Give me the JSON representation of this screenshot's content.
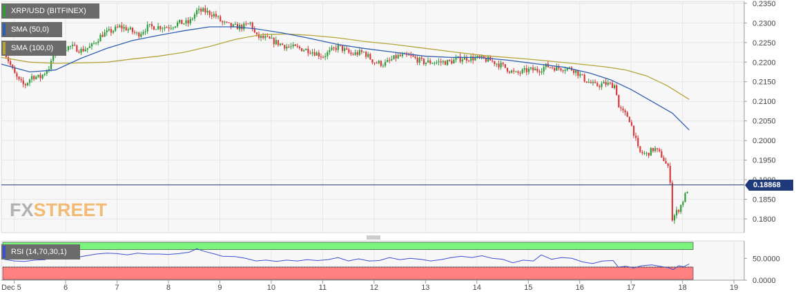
{
  "legend": {
    "title": "XRP/USD (BITFINEX)",
    "sma50": "SMA (50,0)",
    "sma100": "SMA (100,0)",
    "rsi": "RSI (14,70,30,1)"
  },
  "watermark": {
    "fx": "FX",
    "street": "STREET"
  },
  "colors": {
    "up": "#2e9a3a",
    "down": "#d9383a",
    "sma50": "#2f5fb0",
    "sma100": "#b4a43a",
    "rsi_line": "#3b4fd0",
    "overbought": "#7cf37c",
    "oversold": "#ff8080",
    "price_line": "#1f3a7a"
  },
  "chart_data": [
    {
      "type": "candlestick",
      "title": "XRP/USD (BITFINEX)",
      "ylim": [
        0.1765,
        0.2355
      ],
      "y_ticks": [
        "0.2350",
        "0.2300",
        "0.2250",
        "0.2200",
        "0.2150",
        "0.2100",
        "0.2050",
        "0.2000",
        "0.1950",
        "0.1900",
        "0.1850",
        "0.1800"
      ],
      "y_tick_values": [
        0.235,
        0.23,
        0.225,
        0.22,
        0.215,
        0.21,
        0.205,
        0.2,
        0.195,
        0.19,
        0.185,
        0.18
      ],
      "x_ticks": [
        "Dec  5",
        "6",
        "7",
        "8",
        "9",
        "10",
        "11",
        "12",
        "13",
        "14",
        "15",
        "16",
        "17",
        "18",
        "19"
      ],
      "x_tick_days": [
        5,
        6,
        7,
        8,
        9,
        10,
        11,
        12,
        13,
        14,
        15,
        16,
        17,
        18,
        19
      ],
      "x_range": [
        4.75,
        19.2
      ],
      "current_price": 0.18868,
      "current_price_label": "0.18868",
      "close_path": [
        [
          4.8,
          0.223
        ],
        [
          5.0,
          0.217
        ],
        [
          5.1,
          0.215
        ],
        [
          5.2,
          0.214
        ],
        [
          5.35,
          0.2165
        ],
        [
          5.5,
          0.216
        ],
        [
          5.7,
          0.219
        ],
        [
          5.82,
          0.2245
        ],
        [
          5.95,
          0.2235
        ],
        [
          6.1,
          0.224
        ],
        [
          6.3,
          0.223
        ],
        [
          6.5,
          0.224
        ],
        [
          6.7,
          0.227
        ],
        [
          6.9,
          0.228
        ],
        [
          7.05,
          0.229
        ],
        [
          7.2,
          0.2285
        ],
        [
          7.4,
          0.227
        ],
        [
          7.6,
          0.229
        ],
        [
          7.8,
          0.229
        ],
        [
          8.0,
          0.229
        ],
        [
          8.2,
          0.23
        ],
        [
          8.4,
          0.23
        ],
        [
          8.55,
          0.233
        ],
        [
          8.7,
          0.233
        ],
        [
          8.9,
          0.232
        ],
        [
          9.05,
          0.23
        ],
        [
          9.25,
          0.229
        ],
        [
          9.45,
          0.229
        ],
        [
          9.6,
          0.23
        ],
        [
          9.7,
          0.2265
        ],
        [
          9.9,
          0.226
        ],
        [
          10.1,
          0.225
        ],
        [
          10.3,
          0.224
        ],
        [
          10.55,
          0.2235
        ],
        [
          10.75,
          0.223
        ],
        [
          11.0,
          0.2215
        ],
        [
          11.3,
          0.224
        ],
        [
          11.55,
          0.222
        ],
        [
          11.8,
          0.2225
        ],
        [
          12.0,
          0.22
        ],
        [
          12.2,
          0.2195
        ],
        [
          12.45,
          0.2215
        ],
        [
          12.7,
          0.2215
        ],
        [
          12.95,
          0.22
        ],
        [
          13.2,
          0.22
        ],
        [
          13.45,
          0.22
        ],
        [
          13.7,
          0.221
        ],
        [
          14.0,
          0.221
        ],
        [
          14.25,
          0.2205
        ],
        [
          14.5,
          0.219
        ],
        [
          14.75,
          0.217
        ],
        [
          15.0,
          0.218
        ],
        [
          15.2,
          0.218
        ],
        [
          15.35,
          0.219
        ],
        [
          15.55,
          0.2185
        ],
        [
          15.75,
          0.2185
        ],
        [
          15.9,
          0.218
        ],
        [
          16.1,
          0.2155
        ],
        [
          16.3,
          0.214
        ],
        [
          16.5,
          0.2145
        ],
        [
          16.7,
          0.214
        ],
        [
          16.75,
          0.2085
        ],
        [
          16.85,
          0.207
        ],
        [
          16.95,
          0.206
        ],
        [
          17.05,
          0.202
        ],
        [
          17.15,
          0.197
        ],
        [
          17.3,
          0.1965
        ],
        [
          17.45,
          0.198
        ],
        [
          17.6,
          0.196
        ],
        [
          17.75,
          0.192
        ],
        [
          17.8,
          0.18
        ],
        [
          17.87,
          0.1815
        ],
        [
          17.95,
          0.183
        ],
        [
          18.05,
          0.186
        ],
        [
          18.13,
          0.1887
        ]
      ],
      "sma50": [
        [
          4.75,
          0.2195
        ],
        [
          5.3,
          0.2175
        ],
        [
          5.8,
          0.218
        ],
        [
          6.3,
          0.221
        ],
        [
          6.8,
          0.2235
        ],
        [
          7.3,
          0.2255
        ],
        [
          7.8,
          0.2268
        ],
        [
          8.3,
          0.228
        ],
        [
          8.8,
          0.229
        ],
        [
          9.3,
          0.229
        ],
        [
          9.7,
          0.2285
        ],
        [
          10.2,
          0.2275
        ],
        [
          10.7,
          0.2262
        ],
        [
          11.3,
          0.2245
        ],
        [
          11.8,
          0.2235
        ],
        [
          12.4,
          0.2225
        ],
        [
          13.0,
          0.2215
        ],
        [
          13.5,
          0.2212
        ],
        [
          14.0,
          0.2212
        ],
        [
          14.6,
          0.2205
        ],
        [
          15.2,
          0.2195
        ],
        [
          15.7,
          0.2187
        ],
        [
          16.2,
          0.2172
        ],
        [
          16.6,
          0.2155
        ],
        [
          17.0,
          0.213
        ],
        [
          17.4,
          0.21
        ],
        [
          17.8,
          0.207
        ],
        [
          18.13,
          0.2027
        ]
      ],
      "sma100": [
        [
          4.75,
          0.2212
        ],
        [
          5.3,
          0.22
        ],
        [
          5.8,
          0.2197
        ],
        [
          6.3,
          0.2198
        ],
        [
          6.8,
          0.22
        ],
        [
          7.3,
          0.2208
        ],
        [
          7.8,
          0.2215
        ],
        [
          8.3,
          0.2225
        ],
        [
          8.8,
          0.224
        ],
        [
          9.3,
          0.2258
        ],
        [
          9.8,
          0.227
        ],
        [
          10.3,
          0.2272
        ],
        [
          10.8,
          0.2268
        ],
        [
          11.3,
          0.2262
        ],
        [
          11.8,
          0.2253
        ],
        [
          12.4,
          0.2245
        ],
        [
          13.0,
          0.2235
        ],
        [
          13.6,
          0.2225
        ],
        [
          14.2,
          0.2216
        ],
        [
          14.8,
          0.221
        ],
        [
          15.4,
          0.2203
        ],
        [
          16.0,
          0.2195
        ],
        [
          16.5,
          0.2188
        ],
        [
          16.9,
          0.218
        ],
        [
          17.3,
          0.2165
        ],
        [
          17.7,
          0.214
        ],
        [
          18.13,
          0.2105
        ]
      ]
    },
    {
      "type": "line",
      "title": "RSI (14,70,30,1)",
      "ylim": [
        0,
        90
      ],
      "y_ticks": [
        "50.0000",
        "0.0000"
      ],
      "y_tick_values": [
        50,
        0
      ],
      "overbought": 70,
      "oversold": 30,
      "rsi": [
        [
          4.8,
          48
        ],
        [
          5.0,
          44
        ],
        [
          5.2,
          43
        ],
        [
          5.4,
          46
        ],
        [
          5.6,
          47
        ],
        [
          5.8,
          58
        ],
        [
          6.0,
          54
        ],
        [
          6.2,
          52
        ],
        [
          6.4,
          56
        ],
        [
          6.6,
          60
        ],
        [
          6.8,
          62
        ],
        [
          7.0,
          61
        ],
        [
          7.2,
          58
        ],
        [
          7.4,
          62
        ],
        [
          7.6,
          60
        ],
        [
          7.8,
          60
        ],
        [
          8.0,
          59
        ],
        [
          8.2,
          61
        ],
        [
          8.4,
          64
        ],
        [
          8.55,
          72
        ],
        [
          8.7,
          66
        ],
        [
          8.9,
          60
        ],
        [
          9.05,
          55
        ],
        [
          9.3,
          54
        ],
        [
          9.5,
          50
        ],
        [
          9.7,
          44
        ],
        [
          9.9,
          46
        ],
        [
          10.1,
          43
        ],
        [
          10.3,
          46
        ],
        [
          10.5,
          44
        ],
        [
          10.7,
          47
        ],
        [
          10.9,
          45
        ],
        [
          11.1,
          47
        ],
        [
          11.3,
          52
        ],
        [
          11.5,
          44
        ],
        [
          11.7,
          49
        ],
        [
          11.9,
          44
        ],
        [
          12.1,
          45
        ],
        [
          12.3,
          52
        ],
        [
          12.5,
          47
        ],
        [
          12.7,
          50
        ],
        [
          12.9,
          48
        ],
        [
          13.1,
          44
        ],
        [
          13.3,
          47
        ],
        [
          13.5,
          52
        ],
        [
          13.7,
          55
        ],
        [
          13.9,
          52
        ],
        [
          14.1,
          56
        ],
        [
          14.3,
          50
        ],
        [
          14.5,
          48
        ],
        [
          14.7,
          40
        ],
        [
          14.9,
          46
        ],
        [
          15.1,
          44
        ],
        [
          15.25,
          58
        ],
        [
          15.45,
          48
        ],
        [
          15.65,
          52
        ],
        [
          15.85,
          50
        ],
        [
          16.05,
          42
        ],
        [
          16.25,
          38
        ],
        [
          16.45,
          44
        ],
        [
          16.65,
          45
        ],
        [
          16.75,
          30
        ],
        [
          16.9,
          32
        ],
        [
          17.05,
          28
        ],
        [
          17.2,
          33
        ],
        [
          17.4,
          35
        ],
        [
          17.6,
          31
        ],
        [
          17.75,
          28
        ],
        [
          17.82,
          24
        ],
        [
          17.92,
          33
        ],
        [
          18.02,
          31
        ],
        [
          18.13,
          37
        ]
      ]
    }
  ]
}
